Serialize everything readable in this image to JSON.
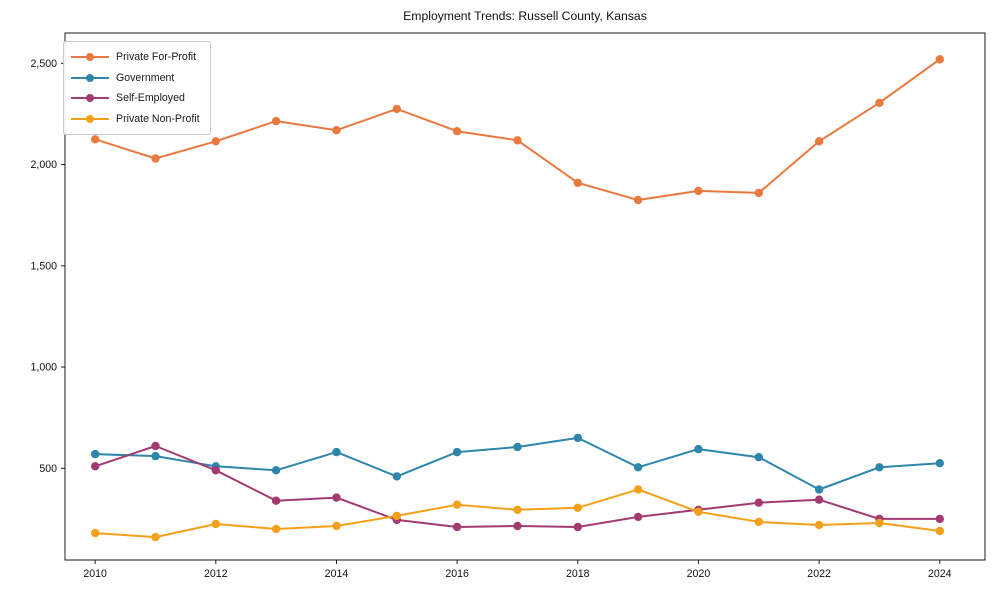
{
  "chart_data": {
    "type": "line",
    "title": "Employment Trends: Russell County, Kansas",
    "x": [
      2010,
      2011,
      2012,
      2013,
      2014,
      2015,
      2016,
      2017,
      2018,
      2019,
      2020,
      2021,
      2022,
      2023,
      2024
    ],
    "series": [
      {
        "name": "Private For-Profit",
        "color": "#E8793F",
        "values": [
          2125,
          2030,
          2115,
          2215,
          2170,
          2275,
          2165,
          2120,
          1910,
          1825,
          1870,
          1860,
          2115,
          2305,
          2520
        ]
      },
      {
        "name": "Government",
        "color": "#2E86AB",
        "values": [
          570,
          560,
          510,
          490,
          580,
          460,
          580,
          605,
          650,
          505,
          595,
          555,
          395,
          505,
          525
        ]
      },
      {
        "name": "Self-Employed",
        "color": "#A23B72",
        "values": [
          510,
          610,
          490,
          340,
          355,
          245,
          210,
          215,
          210,
          260,
          295,
          330,
          345,
          250,
          250
        ]
      },
      {
        "name": "Private Non-Profit",
        "color": "#F5A01B",
        "values": [
          180,
          160,
          225,
          200,
          215,
          265,
          320,
          295,
          305,
          395,
          285,
          235,
          220,
          230,
          190
        ]
      }
    ],
    "x_ticks": [
      2010,
      2012,
      2014,
      2016,
      2018,
      2020,
      2022,
      2024
    ],
    "x_tick_labels": [
      "2010",
      "2012",
      "2014",
      "2016",
      "2018",
      "2020",
      "2022",
      "2024"
    ],
    "y_ticks": [
      500,
      1000,
      1500,
      2000,
      2500
    ],
    "y_tick_labels": [
      "500",
      "1,000",
      "1,500",
      "2,000",
      "2,500"
    ],
    "xlim": [
      2009.5,
      2024.75
    ],
    "ylim": [
      47,
      2650
    ],
    "grid": false,
    "legend_position": "upper left",
    "marker": "circle",
    "axis_color": "#1a1a1a"
  }
}
